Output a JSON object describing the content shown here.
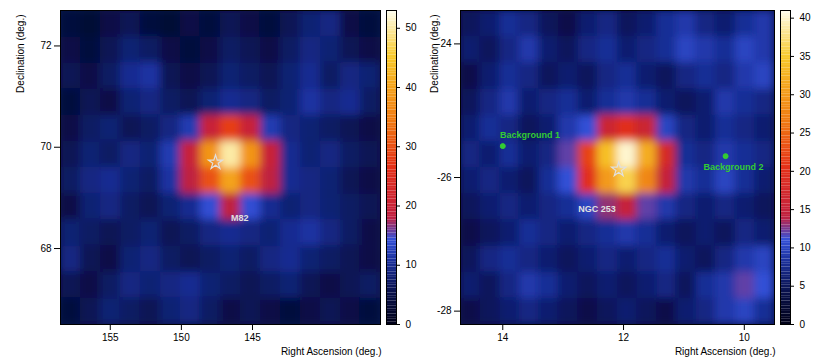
{
  "chart_data": [
    {
      "type": "heatmap",
      "x_label": "Right Ascension (deg.)",
      "y_label": "Declination (deg.)",
      "xlim": [
        158.5,
        136
      ],
      "ylim": [
        66.5,
        72.7
      ],
      "xticks": [
        155,
        150,
        145
      ],
      "yticks": [
        68,
        70,
        72
      ],
      "x_edges": [
        158.5,
        157.09,
        155.69,
        154.28,
        152.88,
        151.47,
        150.06,
        148.66,
        147.25,
        145.84,
        144.44,
        143.03,
        141.63,
        140.22,
        138.81,
        137.41,
        136
      ],
      "y_edges": [
        72.7,
        72.18,
        71.67,
        71.15,
        70.63,
        70.12,
        69.6,
        69.08,
        68.57,
        68.05,
        67.53,
        67.02,
        66.5
      ],
      "values": [
        [
          4,
          3,
          5,
          6,
          4,
          3,
          5,
          4,
          6,
          5,
          4,
          6,
          8,
          9,
          5,
          4
        ],
        [
          5,
          4,
          6,
          8,
          7,
          5,
          4,
          5,
          7,
          6,
          5,
          7,
          9,
          8,
          6,
          5
        ],
        [
          6,
          5,
          7,
          10,
          11,
          6,
          5,
          6,
          8,
          7,
          6,
          8,
          10,
          7,
          9,
          8
        ],
        [
          4,
          6,
          5,
          8,
          9,
          7,
          6,
          8,
          10,
          9,
          7,
          8,
          11,
          9,
          10,
          7
        ],
        [
          5,
          7,
          8,
          6,
          7,
          9,
          12,
          20,
          28,
          20,
          12,
          9,
          8,
          7,
          6,
          5
        ],
        [
          6,
          8,
          7,
          9,
          8,
          12,
          20,
          38,
          50,
          38,
          20,
          10,
          8,
          9,
          7,
          6
        ],
        [
          7,
          9,
          10,
          8,
          7,
          11,
          18,
          30,
          40,
          30,
          18,
          10,
          9,
          8,
          6,
          5
        ],
        [
          5,
          8,
          9,
          7,
          6,
          8,
          10,
          14,
          18,
          14,
          10,
          8,
          9,
          8,
          7,
          6
        ],
        [
          8,
          7,
          6,
          7,
          8,
          6,
          7,
          9,
          10,
          9,
          8,
          10,
          11,
          9,
          7,
          5
        ],
        [
          9,
          6,
          5,
          8,
          9,
          7,
          6,
          7,
          8,
          7,
          9,
          10,
          8,
          7,
          6,
          5
        ],
        [
          6,
          5,
          7,
          9,
          8,
          9,
          10,
          8,
          7,
          6,
          7,
          8,
          6,
          5,
          6,
          7
        ],
        [
          4,
          6,
          8,
          7,
          6,
          8,
          9,
          7,
          5,
          6,
          5,
          4,
          5,
          6,
          5,
          4
        ]
      ],
      "colorbar": {
        "range": [
          0,
          53
        ],
        "ticks": [
          0,
          10,
          20,
          30,
          40,
          50
        ]
      },
      "annotations": [
        {
          "text": "M82",
          "x": 145.9,
          "y": 68.6,
          "color": "#e0e0e0",
          "marker": "star",
          "marker_x": 147.6,
          "marker_y": 69.7
        }
      ]
    },
    {
      "type": "heatmap",
      "x_label": "Right Ascension (deg.)",
      "y_label": "Declination (deg.)",
      "xlim": [
        14.7,
        9.5
      ],
      "ylim": [
        -28.2,
        -23.5
      ],
      "xticks": [
        14,
        12,
        10
      ],
      "yticks": [
        -28,
        -26,
        -24
      ],
      "x_edges": [
        14.7,
        14.38,
        14.05,
        13.73,
        13.4,
        13.08,
        12.75,
        12.43,
        12.1,
        11.78,
        11.45,
        11.13,
        10.8,
        10.48,
        10.15,
        9.83,
        9.5
      ],
      "y_edges": [
        -23.5,
        -23.89,
        -24.28,
        -24.68,
        -25.07,
        -25.46,
        -25.85,
        -26.24,
        -26.63,
        -27.03,
        -27.42,
        -27.81,
        -28.2
      ],
      "values": [
        [
          5,
          6,
          8,
          7,
          5,
          4,
          6,
          7,
          5,
          6,
          8,
          9,
          7,
          6,
          8,
          9
        ],
        [
          6,
          5,
          7,
          9,
          6,
          5,
          7,
          8,
          6,
          7,
          8,
          10,
          9,
          8,
          10,
          9
        ],
        [
          4,
          6,
          8,
          7,
          5,
          6,
          5,
          7,
          8,
          6,
          5,
          7,
          8,
          7,
          9,
          10
        ],
        [
          5,
          7,
          9,
          6,
          7,
          8,
          6,
          8,
          9,
          8,
          6,
          5,
          6,
          9,
          8,
          7
        ],
        [
          6,
          8,
          7,
          5,
          6,
          9,
          11,
          16,
          20,
          16,
          10,
          7,
          6,
          8,
          7,
          6
        ],
        [
          7,
          6,
          8,
          6,
          7,
          12,
          22,
          34,
          40,
          32,
          18,
          8,
          7,
          9,
          8,
          7
        ],
        [
          6,
          7,
          6,
          5,
          8,
          11,
          20,
          30,
          36,
          28,
          15,
          9,
          8,
          10,
          8,
          6
        ],
        [
          5,
          6,
          7,
          6,
          7,
          8,
          10,
          13,
          15,
          12,
          9,
          7,
          6,
          7,
          6,
          5
        ],
        [
          4,
          5,
          6,
          8,
          7,
          6,
          7,
          8,
          9,
          8,
          6,
          5,
          6,
          5,
          7,
          6
        ],
        [
          5,
          7,
          8,
          7,
          6,
          5,
          6,
          7,
          6,
          7,
          8,
          6,
          5,
          7,
          9,
          10
        ],
        [
          6,
          5,
          7,
          9,
          8,
          6,
          5,
          6,
          5,
          6,
          7,
          5,
          8,
          9,
          12,
          11
        ],
        [
          4,
          5,
          6,
          7,
          6,
          5,
          4,
          5,
          6,
          5,
          4,
          6,
          7,
          9,
          10,
          8
        ]
      ],
      "colorbar": {
        "range": [
          0,
          41
        ],
        "ticks": [
          0,
          5,
          10,
          15,
          20,
          25,
          30,
          35,
          40
        ]
      },
      "annotations": [
        {
          "text": "NGC 253",
          "x": 12.44,
          "y": -26.47,
          "color": "#e0e0e0",
          "marker": "star",
          "marker_x": 12.08,
          "marker_y": -25.88
        },
        {
          "text": "Background 1",
          "x": 13.55,
          "y": -25.37,
          "color": "#33cc33",
          "marker": "circle",
          "marker_x": 14.0,
          "marker_y": -25.53
        },
        {
          "text": "Background 2",
          "x": 10.18,
          "y": -25.85,
          "color": "#33cc33",
          "marker": "circle",
          "marker_x": 10.31,
          "marker_y": -25.68
        }
      ]
    }
  ]
}
